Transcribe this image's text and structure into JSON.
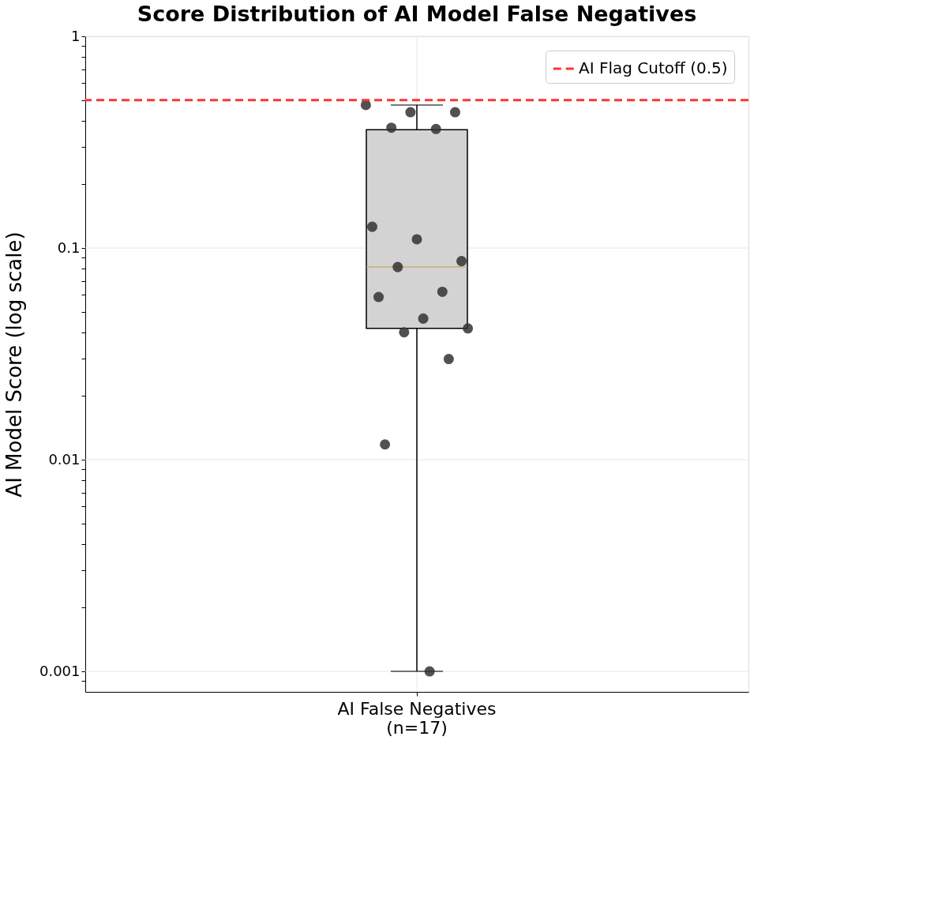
{
  "chart_data": {
    "type": "box",
    "title": "Score Distribution of AI Model False Negatives",
    "ylabel": "AI Model Score (log scale)",
    "categories": [
      "AI False Negatives\n(n=17)"
    ],
    "series": [
      {
        "type": "box",
        "color": "#d3d3d3",
        "boxes": [
          {
            "low": 0.001,
            "q1": 0.0417,
            "median": 0.0813,
            "q3": 0.362,
            "high": 0.474
          }
        ]
      },
      {
        "type": "scatter",
        "color": "#333333",
        "x": [
          "AI False Negatives\n(n=17)",
          "AI False Negatives\n(n=17)",
          "AI False Negatives\n(n=17)",
          "AI False Negatives\n(n=17)",
          "AI False Negatives\n(n=17)",
          "AI False Negatives\n(n=17)",
          "AI False Negatives\n(n=17)",
          "AI False Negatives\n(n=17)",
          "AI False Negatives\n(n=17)",
          "AI False Negatives\n(n=17)",
          "AI False Negatives\n(n=17)",
          "AI False Negatives\n(n=17)",
          "AI False Negatives\n(n=17)",
          "AI False Negatives\n(n=17)",
          "AI False Negatives\n(n=17)",
          "AI False Negatives\n(n=17)",
          "AI False Negatives\n(n=17)"
        ],
        "values": [
          0.474,
          0.438,
          0.438,
          0.37,
          0.365,
          0.126,
          0.11,
          0.0867,
          0.0813,
          0.0621,
          0.0587,
          0.0464,
          0.0417,
          0.04,
          0.0299,
          0.0118,
          0.001
        ]
      }
    ],
    "ylim": [
      0.0008,
      1
    ],
    "log": true,
    "yticks": [
      {
        "value": 0.0009,
        "label": null
      },
      0.001,
      {
        "value": 0.002,
        "label": null
      },
      {
        "value": 0.003,
        "label": null
      },
      {
        "value": 0.004,
        "label": null
      },
      {
        "value": 0.005,
        "label": null
      },
      {
        "value": 0.006,
        "label": null
      },
      {
        "value": 0.007,
        "label": null
      },
      {
        "value": 0.008,
        "label": null
      },
      {
        "value": 0.009,
        "label": null
      },
      0.01,
      {
        "value": 0.02,
        "label": null
      },
      {
        "value": 0.03,
        "label": null
      },
      {
        "value": 0.04,
        "label": null
      },
      {
        "value": 0.05,
        "label": null
      },
      {
        "value": 0.06,
        "label": null
      },
      {
        "value": 0.07,
        "label": null
      },
      {
        "value": 0.08,
        "label": null
      },
      {
        "value": 0.09,
        "label": null
      },
      0.1,
      {
        "value": 0.2,
        "label": null
      },
      {
        "value": 0.3,
        "label": null
      },
      {
        "value": 0.4,
        "label": null
      },
      {
        "value": 0.5,
        "label": null
      },
      {
        "value": 0.6,
        "label": null
      },
      {
        "value": 0.7,
        "label": null
      },
      {
        "value": 0.8,
        "label": null
      },
      {
        "value": 0.9,
        "label": null
      },
      1
    ],
    "ref_lines": [
      {
        "axis": "y",
        "value": 0.5,
        "label": "AI Flag Cutoff (0.5)",
        "color": "#ff3333",
        "line_style": "dashed"
      }
    ],
    "grid": true,
    "legend": "top right"
  }
}
